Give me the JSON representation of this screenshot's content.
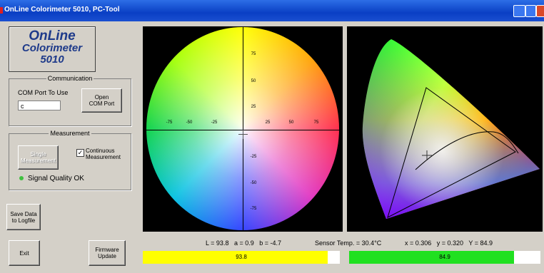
{
  "title_bar": {
    "title": "OnLine Colorimeter 5010, PC-Tool"
  },
  "logo": {
    "lines": [
      "OnLine",
      "Colorimeter",
      "5010"
    ]
  },
  "communication": {
    "group_label": "Communication",
    "port_label": "COM Port To Use",
    "port_value": "c",
    "open_button": "Open\nCOM Port"
  },
  "measurement": {
    "group_label": "Measurement",
    "single_button": "Single\nMeasurement",
    "continuous_label": "Continuous\nMeasurement",
    "signal_status": "Signal Quality OK"
  },
  "buttons": {
    "save": "Save Data\nto Logfile",
    "exit": "Exit",
    "firmware": "Firmware\nUpdate"
  },
  "color_wheel": {
    "x_labels": [
      "-75",
      "-50",
      "-25",
      "25",
      "50",
      "75"
    ],
    "y_labels": [
      "75",
      "50",
      "25",
      "-25",
      "-50",
      "-75"
    ]
  },
  "status": {
    "lab": "L = 93.8   a = 0.9   b = -4.7",
    "sensor_temp": "Sensor Temp. = 30.4°C",
    "xyY": "x = 0.306   y = 0.320   Y = 84.9"
  },
  "bars": {
    "L_value": "93.8",
    "Y_value": "84.9"
  }
}
